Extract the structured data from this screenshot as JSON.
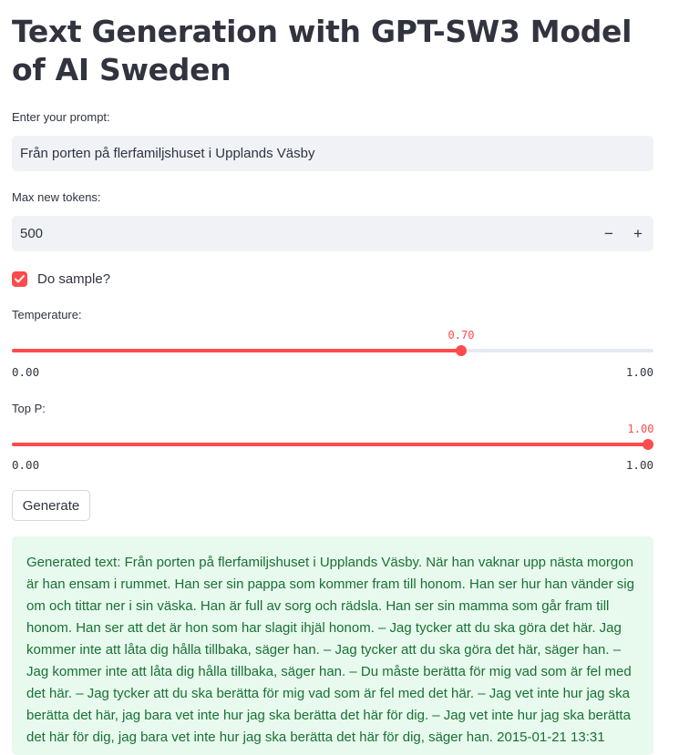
{
  "title": "Text Generation with GPT-SW3 Model of AI Sweden",
  "prompt": {
    "label": "Enter your prompt:",
    "value": "Från porten på flerfamiljshuset i Upplands Väsby"
  },
  "max_tokens": {
    "label": "Max new tokens:",
    "value": "500",
    "minus": "−",
    "plus": "+"
  },
  "do_sample": {
    "label": "Do sample?",
    "checked": true
  },
  "temperature": {
    "label": "Temperature:",
    "value": "0.70",
    "min": "0.00",
    "max": "1.00",
    "fraction": 0.7
  },
  "top_p": {
    "label": "Top P:",
    "value": "1.00",
    "min": "0.00",
    "max": "1.00",
    "fraction": 1.0
  },
  "generate_button": "Generate",
  "output": "Generated text: Från porten på flerfamiljshuset i Upplands Väsby. När han vaknar upp nästa morgon är han ensam i rummet. Han ser sin pappa som kommer fram till honom. Han ser hur han vänder sig om och tittar ner i sin väska. Han är full av sorg och rädsla. Han ser sin mamma som går fram till honom. Han ser att det är hon som har slagit ihjäl honom. – Jag tycker att du ska göra det här. Jag kommer inte att låta dig hålla tillbaka, säger han. – Jag tycker att du ska göra det här, säger han. – Jag kommer inte att låta dig hålla tillbaka, säger han. – Du måste berätta för mig vad som är fel med det här. – Jag tycker att du ska berätta för mig vad som är fel med det här. – Jag vet inte hur jag ska berätta det här, jag bara vet inte hur jag ska berätta det här för dig. – Jag vet inte hur jag ska berätta det här för dig, jag bara vet inte hur jag ska berätta det här för dig, säger han. 2015-01-21 13:31",
  "colors": {
    "accent": "#ff4b4b",
    "success_bg": "#e8f9ee",
    "success_text": "#177233"
  }
}
